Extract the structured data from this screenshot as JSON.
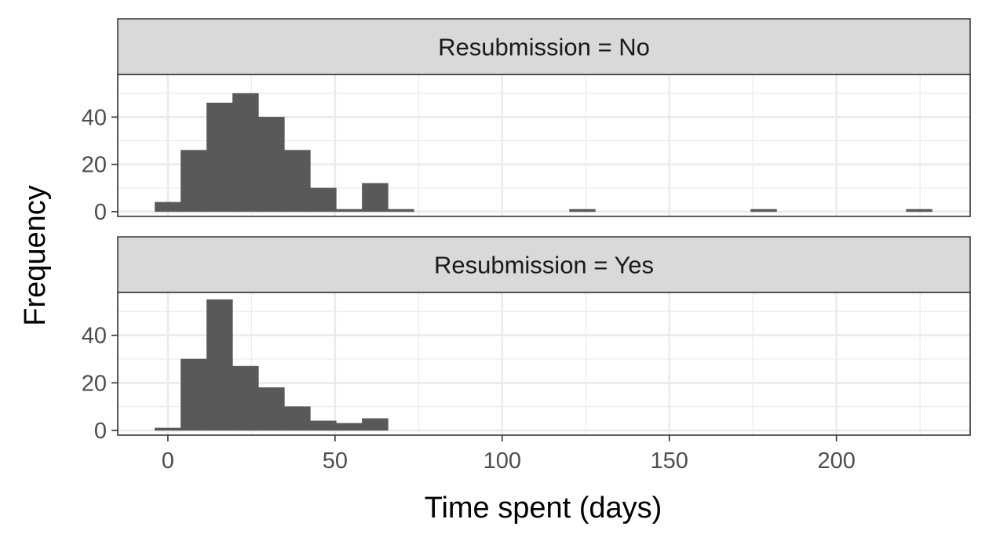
{
  "chart_data": {
    "type": "bar",
    "subtype": "faceted-histogram",
    "xlabel": "Time spent (days)",
    "ylabel": "Frequency",
    "xlim": [
      -15,
      240
    ],
    "x_ticks": [
      0,
      50,
      100,
      150,
      200
    ],
    "y_ticks": [
      0,
      20,
      40
    ],
    "ylim": [
      -2,
      58
    ],
    "bin_width": 7.75,
    "grid": true,
    "theme": {
      "bar_color": "#595959",
      "strip_fill": "#d9d9d9",
      "panel_border": "#333333",
      "grid_color": "#ebebeb"
    },
    "facets": [
      {
        "strip_label": "Resubmission = No",
        "bins": [
          {
            "x": 0.0,
            "count": 4
          },
          {
            "x": 7.75,
            "count": 26
          },
          {
            "x": 15.5,
            "count": 46
          },
          {
            "x": 23.25,
            "count": 50
          },
          {
            "x": 31.0,
            "count": 40
          },
          {
            "x": 38.75,
            "count": 26
          },
          {
            "x": 46.5,
            "count": 10
          },
          {
            "x": 54.25,
            "count": 1
          },
          {
            "x": 62.0,
            "count": 12
          },
          {
            "x": 69.75,
            "count": 1
          },
          {
            "x": 124.0,
            "count": 1
          },
          {
            "x": 178.25,
            "count": 1
          },
          {
            "x": 224.75,
            "count": 1
          }
        ]
      },
      {
        "strip_label": "Resubmission = Yes",
        "bins": [
          {
            "x": 0.0,
            "count": 1
          },
          {
            "x": 7.75,
            "count": 30
          },
          {
            "x": 15.5,
            "count": 55
          },
          {
            "x": 23.25,
            "count": 27
          },
          {
            "x": 31.0,
            "count": 18
          },
          {
            "x": 38.75,
            "count": 10
          },
          {
            "x": 46.5,
            "count": 4
          },
          {
            "x": 54.25,
            "count": 3
          },
          {
            "x": 62.0,
            "count": 5
          }
        ]
      }
    ]
  }
}
